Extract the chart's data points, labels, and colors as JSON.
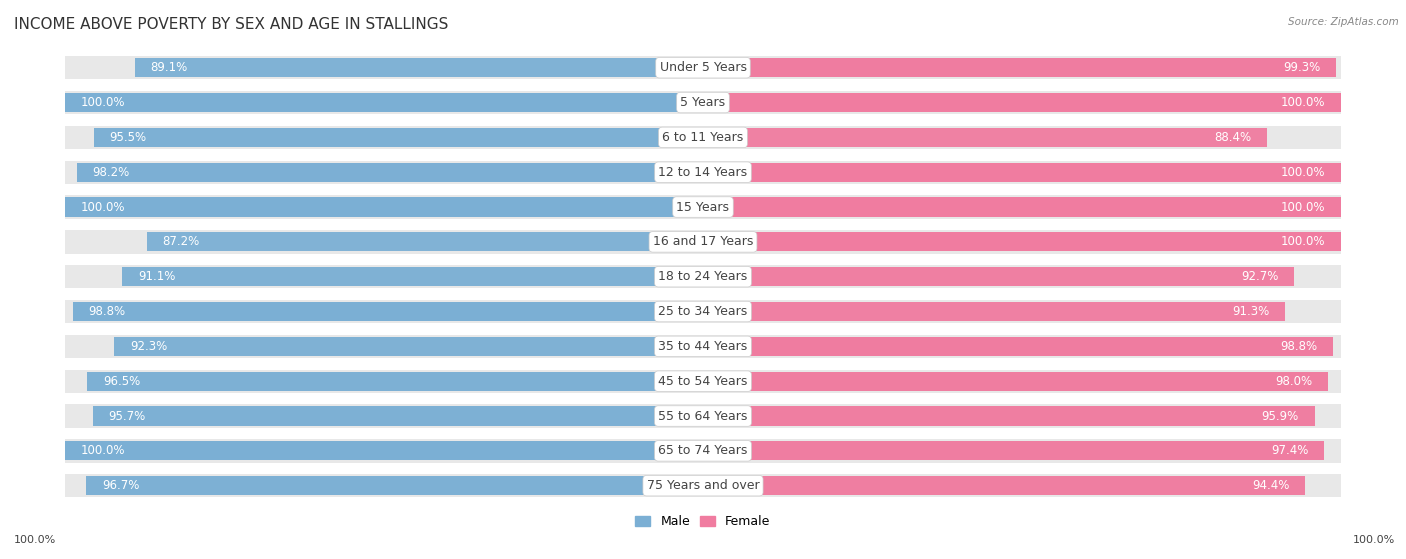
{
  "title": "INCOME ABOVE POVERTY BY SEX AND AGE IN STALLINGS",
  "source": "Source: ZipAtlas.com",
  "categories": [
    "Under 5 Years",
    "5 Years",
    "6 to 11 Years",
    "12 to 14 Years",
    "15 Years",
    "16 and 17 Years",
    "18 to 24 Years",
    "25 to 34 Years",
    "35 to 44 Years",
    "45 to 54 Years",
    "55 to 64 Years",
    "65 to 74 Years",
    "75 Years and over"
  ],
  "male_values": [
    89.1,
    100.0,
    95.5,
    98.2,
    100.0,
    87.2,
    91.1,
    98.8,
    92.3,
    96.5,
    95.7,
    100.0,
    96.7
  ],
  "female_values": [
    99.3,
    100.0,
    88.4,
    100.0,
    100.0,
    100.0,
    92.7,
    91.3,
    98.8,
    98.0,
    95.9,
    97.4,
    94.4
  ],
  "male_color": "#7bafd4",
  "female_color": "#f07ca0",
  "male_color_light": "#b8d4ea",
  "female_color_light": "#f5b8cc",
  "male_label": "Male",
  "female_label": "Female",
  "legend_male_color": "#7bafd4",
  "legend_female_color": "#f07ca0",
  "bg_color": "#ffffff",
  "track_color": "#e8e8e8",
  "title_fontsize": 11,
  "label_fontsize": 9,
  "value_fontsize": 8.5,
  "footer_value": "100.0%",
  "bar_text_color": "#ffffff",
  "category_text_color": "#444444"
}
